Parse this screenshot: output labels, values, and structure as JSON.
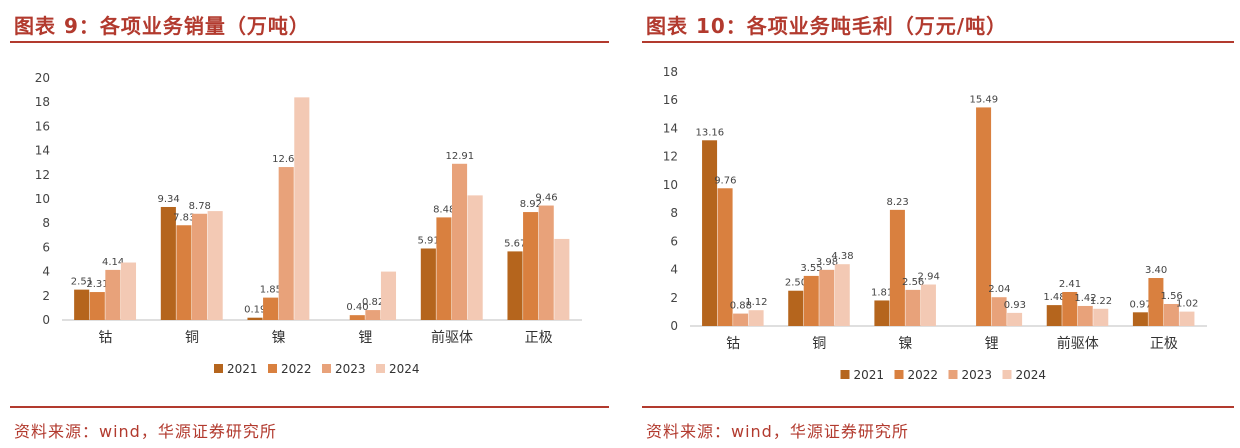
{
  "panels": [
    {
      "title": "图表 9：各项业务销量（万吨）",
      "source": "资料来源：wind，华源证券研究所",
      "chart_data": {
        "type": "bar",
        "categories": [
          "钴",
          "铜",
          "镍",
          "锂",
          "前驱体",
          "正极"
        ],
        "ylim": [
          0,
          20
        ],
        "yticks": [
          0,
          2,
          4,
          6,
          8,
          10,
          12,
          14,
          16,
          18,
          20
        ],
        "legend_position": "bottom",
        "grid": false,
        "series": [
          {
            "name": "2021",
            "color": "#b5651d",
            "values": [
              2.51,
              9.34,
              0.19,
              0.0,
              5.91,
              5.67
            ],
            "labels": [
              "2.51",
              "9.34",
              "0.19",
              "",
              "5.91",
              "5.67"
            ]
          },
          {
            "name": "2022",
            "color": "#d9803f",
            "values": [
              2.31,
              7.83,
              1.85,
              0.4,
              8.48,
              8.92
            ],
            "labels": [
              "2.31",
              "7.83",
              "1.85",
              "0.40",
              "8.48",
              "8.92"
            ]
          },
          {
            "name": "2023",
            "color": "#e8a27a",
            "values": [
              4.14,
              8.78,
              12.64,
              0.82,
              12.91,
              9.46
            ],
            "labels": [
              "4.14",
              "8.78",
              "12.64",
              "0.82",
              "12.91",
              "9.46"
            ]
          },
          {
            "name": "2024",
            "color": "#f3c9b4",
            "values": [
              4.75,
              9.0,
              18.4,
              4.0,
              10.3,
              6.7
            ],
            "labels": [
              "",
              "",
              "",
              "",
              "",
              ""
            ]
          }
        ]
      }
    },
    {
      "title": "图表 10：各项业务吨毛利（万元/吨）",
      "source": "资料来源：wind，华源证券研究所",
      "chart_data": {
        "type": "bar",
        "categories": [
          "钴",
          "铜",
          "镍",
          "锂",
          "前驱体",
          "正极"
        ],
        "ylim": [
          0,
          18
        ],
        "yticks": [
          0,
          2,
          4,
          6,
          8,
          10,
          12,
          14,
          16,
          18
        ],
        "legend_position": "bottom",
        "grid": false,
        "series": [
          {
            "name": "2021",
            "color": "#b5651d",
            "values": [
              13.16,
              2.5,
              1.81,
              0.0,
              1.48,
              0.97
            ],
            "labels": [
              "13.16",
              "2.50",
              "1.81",
              "",
              "1.48",
              "0.97"
            ]
          },
          {
            "name": "2022",
            "color": "#d9803f",
            "values": [
              9.76,
              3.55,
              8.23,
              15.49,
              2.41,
              3.4
            ],
            "labels": [
              "9.76",
              "3.55",
              "8.23",
              "15.49",
              "2.41",
              "3.40"
            ]
          },
          {
            "name": "2023",
            "color": "#e8a27a",
            "values": [
              0.88,
              3.98,
              2.56,
              2.04,
              1.42,
              1.56
            ],
            "labels": [
              "0.88",
              "3.98",
              "2.56",
              "2.04",
              "1.42",
              "1.56"
            ]
          },
          {
            "name": "2024",
            "color": "#f3c9b4",
            "values": [
              1.12,
              4.38,
              2.94,
              0.93,
              1.22,
              1.02
            ],
            "labels": [
              "1.12",
              "4.38",
              "2.94",
              "0.93",
              "1.22",
              "1.02"
            ]
          }
        ]
      }
    }
  ]
}
